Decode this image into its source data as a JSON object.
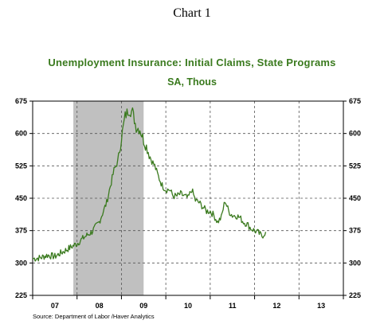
{
  "header": "Chart 1",
  "chart_data": {
    "type": "line",
    "title": "Unemployment Insurance: Initial Claims, State Programs",
    "subtitle": "SA, Thous",
    "xlabel": "",
    "ylabel": "",
    "x_tick_labels": [
      "07",
      "08",
      "09",
      "10",
      "11",
      "12",
      "13"
    ],
    "y_ticks": [
      225,
      300,
      375,
      450,
      525,
      600,
      675
    ],
    "y_tick_labels": [
      "225",
      "300",
      "375",
      "450",
      "525",
      "600",
      "675"
    ],
    "ylim": [
      225,
      675
    ],
    "xlim": [
      "2007-01",
      "2013-12"
    ],
    "recession_shading": {
      "start": "2007-12",
      "end": "2009-06"
    },
    "grid": "dashed, major",
    "series": [
      {
        "color": "#3a7a1e",
        "x": [
          "2007-01",
          "2007-03",
          "2007-05",
          "2007-07",
          "2007-09",
          "2007-11",
          "2008-01",
          "2008-03",
          "2008-05",
          "2008-07",
          "2008-09",
          "2008-10",
          "2008-11",
          "2008-12",
          "2009-01",
          "2009-02",
          "2009-03",
          "2009-04",
          "2009-05",
          "2009-06",
          "2009-07",
          "2009-08",
          "2009-09",
          "2009-10",
          "2009-11",
          "2009-12",
          "2010-01",
          "2010-02",
          "2010-03",
          "2010-04",
          "2010-05",
          "2010-06",
          "2010-07",
          "2010-08",
          "2010-09",
          "2010-10",
          "2010-11",
          "2010-12",
          "2011-01",
          "2011-02",
          "2011-03",
          "2011-04",
          "2011-05",
          "2011-06",
          "2011-07",
          "2011-08",
          "2011-09",
          "2011-10",
          "2011-11",
          "2011-12",
          "2012-01",
          "2012-02",
          "2012-03",
          "2012-04"
        ],
        "values": [
          310,
          312,
          318,
          315,
          325,
          335,
          345,
          360,
          372,
          395,
          440,
          478,
          515,
          535,
          590,
          640,
          655,
          650,
          615,
          610,
          585,
          565,
          540,
          525,
          500,
          480,
          470,
          470,
          455,
          455,
          460,
          455,
          450,
          470,
          445,
          440,
          430,
          420,
          420,
          410,
          395,
          405,
          445,
          420,
          410,
          410,
          405,
          395,
          390,
          380,
          375,
          370,
          362,
          372
        ]
      }
    ]
  },
  "source": "Source:  Department of Labor /Haver Analytics"
}
